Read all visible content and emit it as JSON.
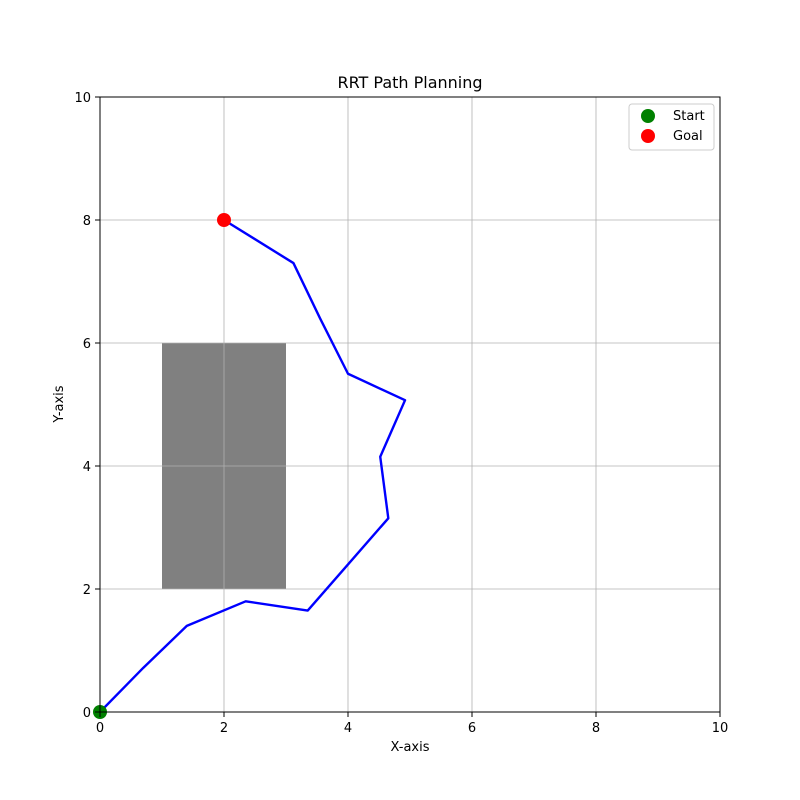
{
  "chart_data": {
    "type": "line",
    "title": "RRT Path Planning",
    "xlabel": "X-axis",
    "ylabel": "Y-axis",
    "xlim": [
      0,
      10
    ],
    "ylim": [
      0,
      10
    ],
    "xticks": [
      0,
      2,
      4,
      6,
      8,
      10
    ],
    "yticks": [
      0,
      2,
      4,
      6,
      8,
      10
    ],
    "grid": true,
    "legend_position": "top-right",
    "obstacle": {
      "x": [
        1,
        3
      ],
      "y": [
        2,
        6
      ],
      "color": "#808080"
    },
    "path": {
      "color": "#0000ff",
      "x": [
        0,
        0.7,
        1.4,
        2.35,
        3.35,
        4.0,
        4.65,
        4.52,
        4.92,
        4.0,
        3.55,
        3.12,
        2.0
      ],
      "y": [
        0,
        0.72,
        1.4,
        1.8,
        1.65,
        2.4,
        3.15,
        4.15,
        5.07,
        5.5,
        6.4,
        7.3,
        8.0
      ]
    },
    "start": {
      "label": "Start",
      "x": 0,
      "y": 0,
      "color": "#008000"
    },
    "goal": {
      "label": "Goal",
      "x": 2,
      "y": 8,
      "color": "#ff0000"
    }
  }
}
